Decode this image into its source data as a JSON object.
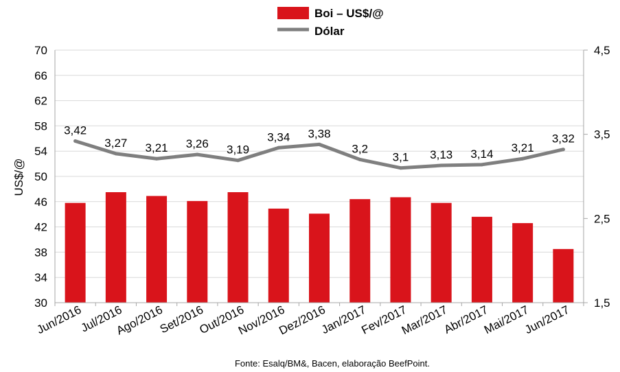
{
  "chart_data": {
    "type": "bar",
    "categories": [
      "Jun/2016",
      "Jul/2016",
      "Ago/2016",
      "Set/2016",
      "Out/2016",
      "Nov/2016",
      "Dez/2016",
      "Jan/2017",
      "Fev/2017",
      "Mar/2017",
      "Abr/2017",
      "Mai/2017",
      "Jun/2017"
    ],
    "series": [
      {
        "name": "Boi – US$/@",
        "type": "bar",
        "axis": "left",
        "color": "#d9141b",
        "values": [
          45.8,
          47.5,
          46.9,
          46.1,
          47.5,
          44.9,
          44.1,
          46.4,
          46.7,
          45.8,
          43.6,
          42.6,
          38.5
        ]
      },
      {
        "name": "Dólar",
        "type": "line",
        "axis": "right",
        "color": "#7f7f7f",
        "values": [
          3.42,
          3.27,
          3.21,
          3.26,
          3.19,
          3.34,
          3.38,
          3.2,
          3.1,
          3.13,
          3.14,
          3.21,
          3.32
        ],
        "labels": [
          "3,42",
          "3,27",
          "3,21",
          "3,26",
          "3,19",
          "3,34",
          "3,38",
          "3,2",
          "3,1",
          "3,13",
          "3,14",
          "3,21",
          "3,32"
        ]
      }
    ],
    "ylabel": "US$/@",
    "ylim": [
      30,
      70
    ],
    "y_ticks": [
      "30",
      "34",
      "38",
      "42",
      "46",
      "50",
      "54",
      "58",
      "62",
      "66",
      "70"
    ],
    "y2lim": [
      1.5,
      4.5
    ],
    "y2_ticks": [
      "1,5",
      "2,5",
      "3,5",
      "4,5"
    ],
    "grid": "horizontal",
    "legend_position": "top-center",
    "source": "Fonte: Esalq/BM&, Bacen, elaboração BeefPoint."
  }
}
